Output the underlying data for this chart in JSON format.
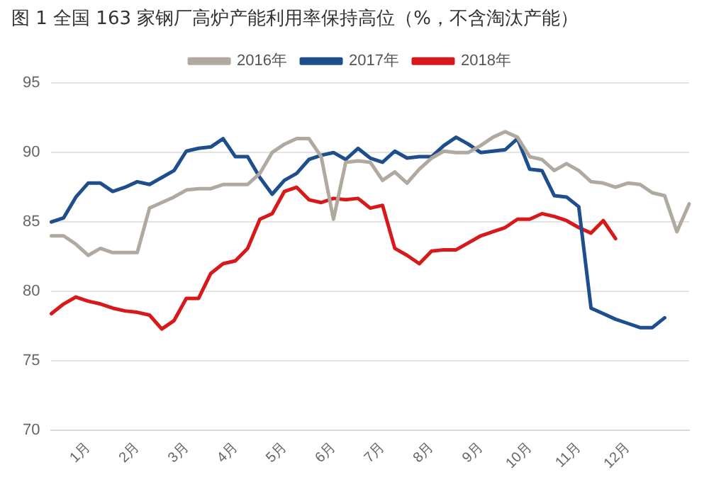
{
  "chart_data": {
    "type": "line",
    "title": "图 1 全国 163 家钢厂高炉产能利用率保持高位（%，不含淘汰产能）",
    "categories": [
      null,
      null,
      null,
      "1月",
      null,
      null,
      null,
      "2月",
      null,
      null,
      null,
      "3月",
      null,
      null,
      null,
      "4月",
      null,
      null,
      null,
      "5月",
      null,
      null,
      null,
      "6月",
      null,
      null,
      null,
      "7月",
      null,
      null,
      null,
      "8月",
      null,
      null,
      null,
      "9月",
      null,
      null,
      null,
      "10月",
      null,
      null,
      null,
      "11月",
      null,
      null,
      null,
      "12月",
      null,
      null,
      null,
      null,
      null
    ],
    "series": [
      {
        "name": "2016年",
        "color": "#b0a9a0",
        "values": [
          84.0,
          84.0,
          83.4,
          82.6,
          83.1,
          82.8,
          82.8,
          82.8,
          86.0,
          86.4,
          86.8,
          87.3,
          87.4,
          87.4,
          87.7,
          87.7,
          87.7,
          88.5,
          90.0,
          90.6,
          91.0,
          91.0,
          89.7,
          85.2,
          89.3,
          89.4,
          89.3,
          88.0,
          88.6,
          87.8,
          88.8,
          89.6,
          90.1,
          90.0,
          90.0,
          90.5,
          91.1,
          91.5,
          91.1,
          89.7,
          89.5,
          88.7,
          89.2,
          88.7,
          87.9,
          87.8,
          87.5,
          87.8,
          87.7,
          87.1,
          86.9,
          84.3,
          86.3
        ]
      },
      {
        "name": "2017年",
        "color": "#1f4e8c",
        "values": [
          85.0,
          85.3,
          86.8,
          87.8,
          87.8,
          87.2,
          87.5,
          87.9,
          87.7,
          88.2,
          88.7,
          90.1,
          90.3,
          90.4,
          91.0,
          89.7,
          89.7,
          88.2,
          87.0,
          88.0,
          88.5,
          89.5,
          89.8,
          90.0,
          89.5,
          90.3,
          89.6,
          89.3,
          90.1,
          89.6,
          89.7,
          89.7,
          90.5,
          91.1,
          90.6,
          90.0,
          90.1,
          90.2,
          91.0,
          88.8,
          88.7,
          86.9,
          86.8,
          86.1,
          78.8,
          78.4,
          78.0,
          77.7,
          77.4,
          77.4,
          78.1,
          null,
          null
        ]
      },
      {
        "name": "2018年",
        "color": "#d7191c",
        "values": [
          78.4,
          79.1,
          79.6,
          79.3,
          79.1,
          78.8,
          78.6,
          78.5,
          78.3,
          77.3,
          77.9,
          79.5,
          79.5,
          81.3,
          82.0,
          82.2,
          83.1,
          85.2,
          85.6,
          87.2,
          87.5,
          86.6,
          86.4,
          86.7,
          86.6,
          86.7,
          86.0,
          86.2,
          83.1,
          82.6,
          82.0,
          82.9,
          83.0,
          83.0,
          83.5,
          84.0,
          84.3,
          84.6,
          85.2,
          85.2,
          85.6,
          85.4,
          85.1,
          84.6,
          84.2,
          85.1,
          83.8,
          null,
          null,
          null,
          null,
          null,
          null
        ]
      }
    ],
    "ylim": [
      70,
      95
    ],
    "yticks": [
      70,
      75,
      80,
      85,
      90,
      95
    ],
    "grid": "y",
    "legend": "top",
    "marker": "none",
    "line_style": "solid"
  }
}
